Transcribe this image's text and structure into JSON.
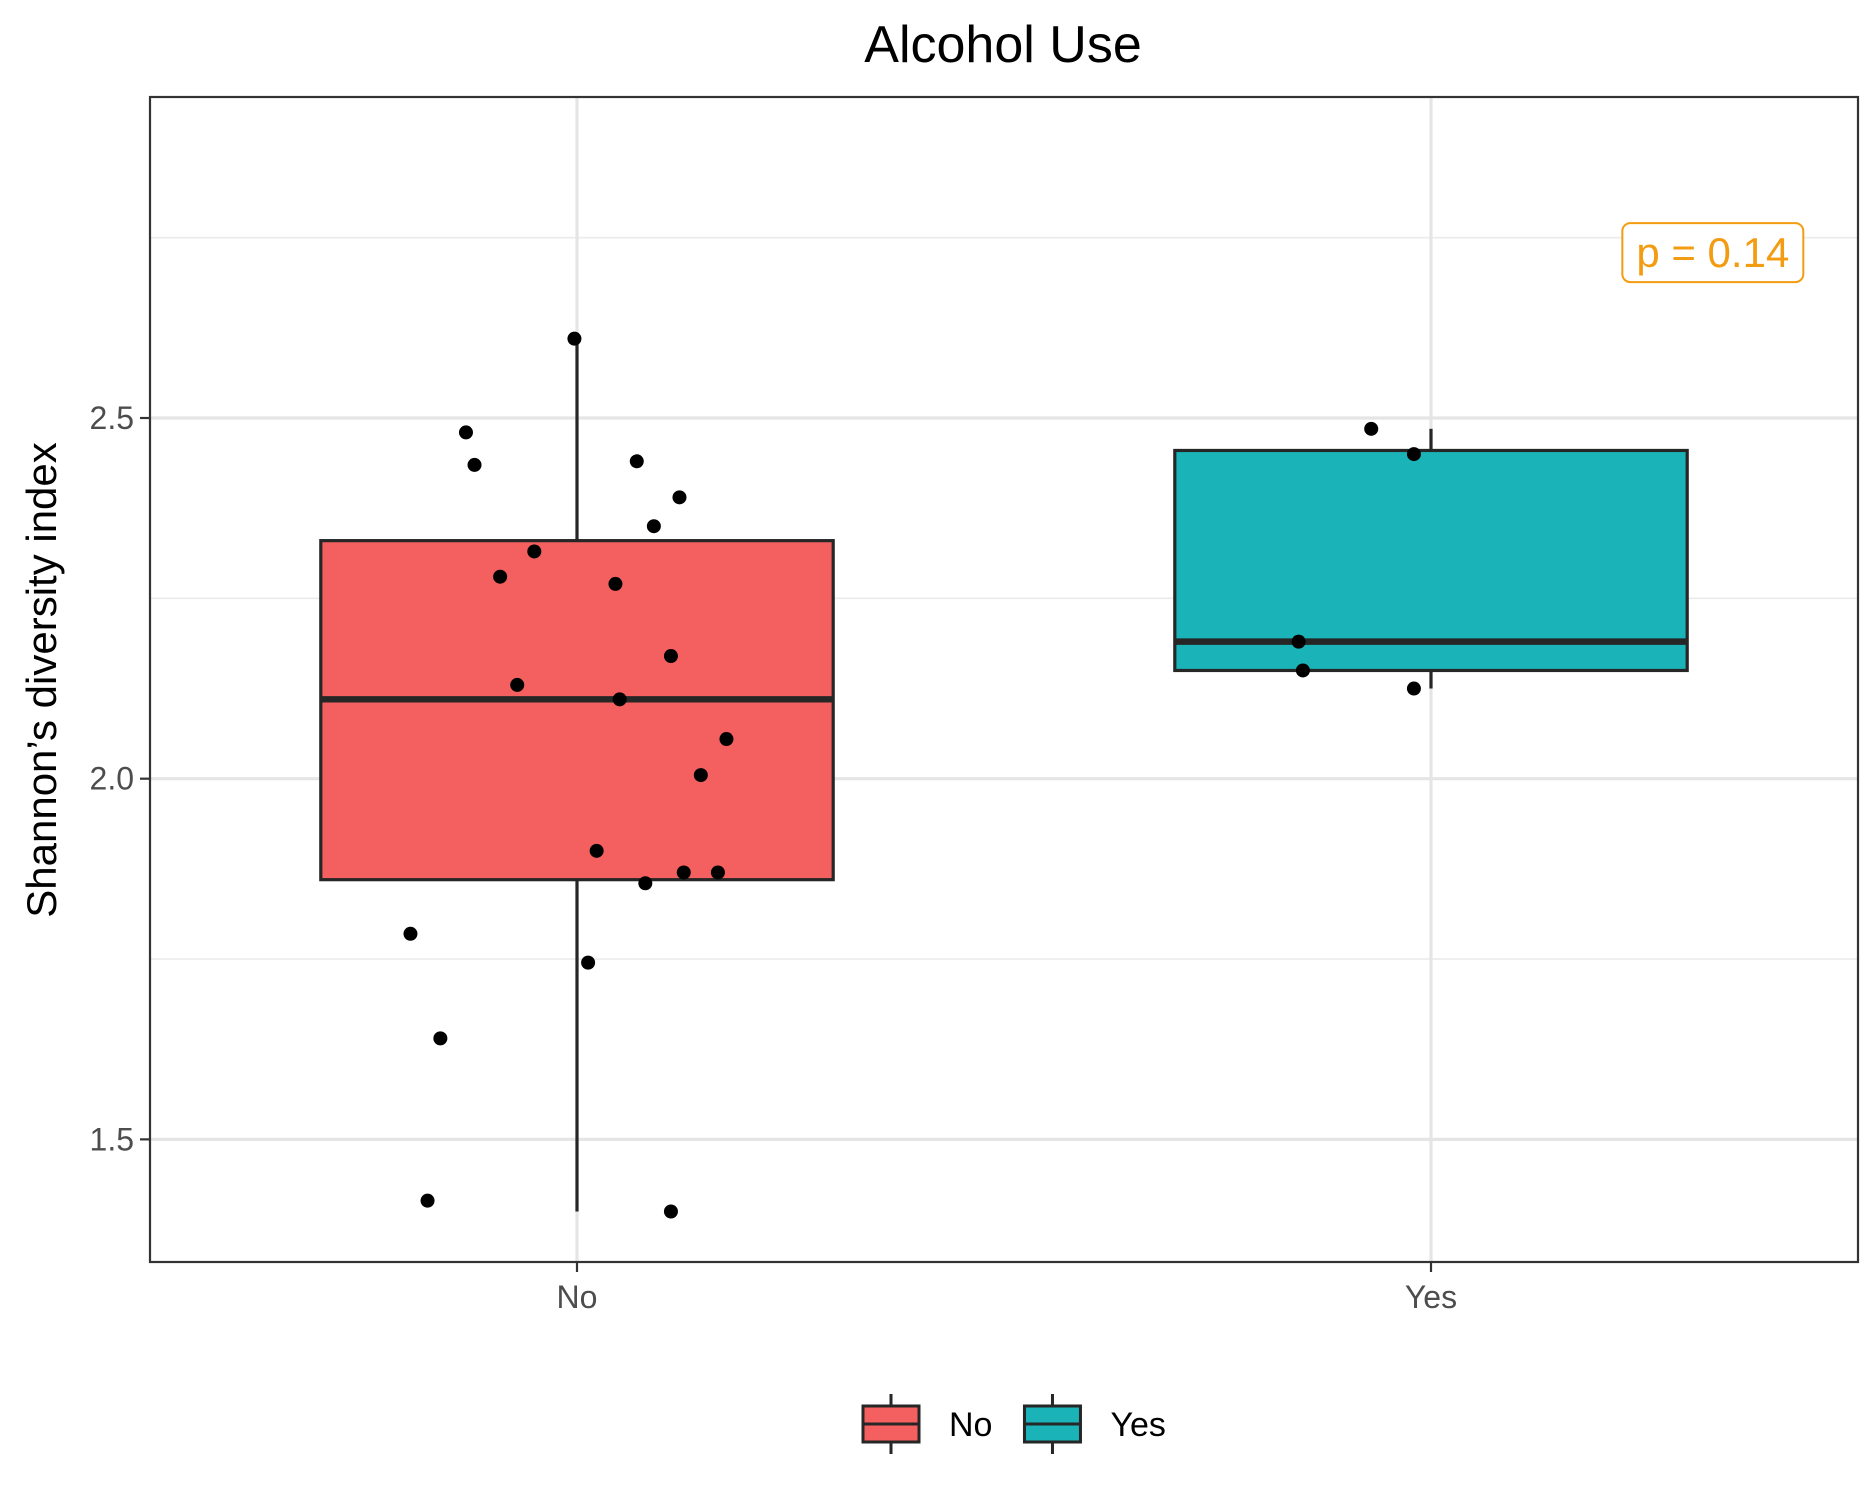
{
  "chart_data": {
    "type": "box",
    "title": "Alcohol Use",
    "xlabel": "",
    "ylabel": "Shannon’s diversity index",
    "categories": [
      "No",
      "Yes"
    ],
    "ylim": [
      1.33,
      2.945
    ],
    "yticks": [
      1.5,
      2.0,
      2.5
    ],
    "ytick_labels": [
      "1.5",
      "2.0",
      "2.5"
    ],
    "grid": true,
    "legend": {
      "position": "bottom",
      "entries": [
        "No",
        "Yes"
      ]
    },
    "colors": {
      "No": "#F46060",
      "Yes": "#1AB3B8",
      "annotation": "#f39c12"
    },
    "boxes": [
      {
        "category": "No",
        "lower_whisker": 1.4,
        "q1": 1.86,
        "median": 2.11,
        "q3": 2.33,
        "upper_whisker": 2.61
      },
      {
        "category": "Yes",
        "lower_whisker": 2.125,
        "q1": 2.15,
        "median": 2.19,
        "q3": 2.455,
        "upper_whisker": 2.485
      }
    ],
    "points": [
      {
        "category": "No",
        "jitter": -0.003,
        "y": 2.61
      },
      {
        "category": "No",
        "jitter": -0.13,
        "y": 2.48
      },
      {
        "category": "No",
        "jitter": -0.12,
        "y": 2.435
      },
      {
        "category": "No",
        "jitter": 0.07,
        "y": 2.44
      },
      {
        "category": "No",
        "jitter": 0.12,
        "y": 2.39
      },
      {
        "category": "No",
        "jitter": 0.09,
        "y": 2.35
      },
      {
        "category": "No",
        "jitter": -0.05,
        "y": 2.315
      },
      {
        "category": "No",
        "jitter": -0.09,
        "y": 2.28
      },
      {
        "category": "No",
        "jitter": 0.045,
        "y": 2.27
      },
      {
        "category": "No",
        "jitter": 0.11,
        "y": 2.17
      },
      {
        "category": "No",
        "jitter": -0.07,
        "y": 2.13
      },
      {
        "category": "No",
        "jitter": 0.05,
        "y": 2.11
      },
      {
        "category": "No",
        "jitter": 0.175,
        "y": 2.055
      },
      {
        "category": "No",
        "jitter": 0.145,
        "y": 2.005
      },
      {
        "category": "No",
        "jitter": 0.023,
        "y": 1.9
      },
      {
        "category": "No",
        "jitter": 0.125,
        "y": 1.87
      },
      {
        "category": "No",
        "jitter": 0.165,
        "y": 1.87
      },
      {
        "category": "No",
        "jitter": 0.08,
        "y": 1.855
      },
      {
        "category": "No",
        "jitter": -0.195,
        "y": 1.785
      },
      {
        "category": "No",
        "jitter": 0.013,
        "y": 1.745
      },
      {
        "category": "No",
        "jitter": -0.16,
        "y": 1.64
      },
      {
        "category": "No",
        "jitter": -0.175,
        "y": 1.415
      },
      {
        "category": "No",
        "jitter": 0.11,
        "y": 1.4
      },
      {
        "category": "Yes",
        "jitter": -0.07,
        "y": 2.485
      },
      {
        "category": "Yes",
        "jitter": -0.02,
        "y": 2.45
      },
      {
        "category": "Yes",
        "jitter": -0.155,
        "y": 2.19
      },
      {
        "category": "Yes",
        "jitter": -0.15,
        "y": 2.15
      },
      {
        "category": "Yes",
        "jitter": -0.02,
        "y": 2.125
      }
    ],
    "annotation": {
      "text": "p = 0.14",
      "x_category_offset": 0.33,
      "y": 2.73
    }
  }
}
